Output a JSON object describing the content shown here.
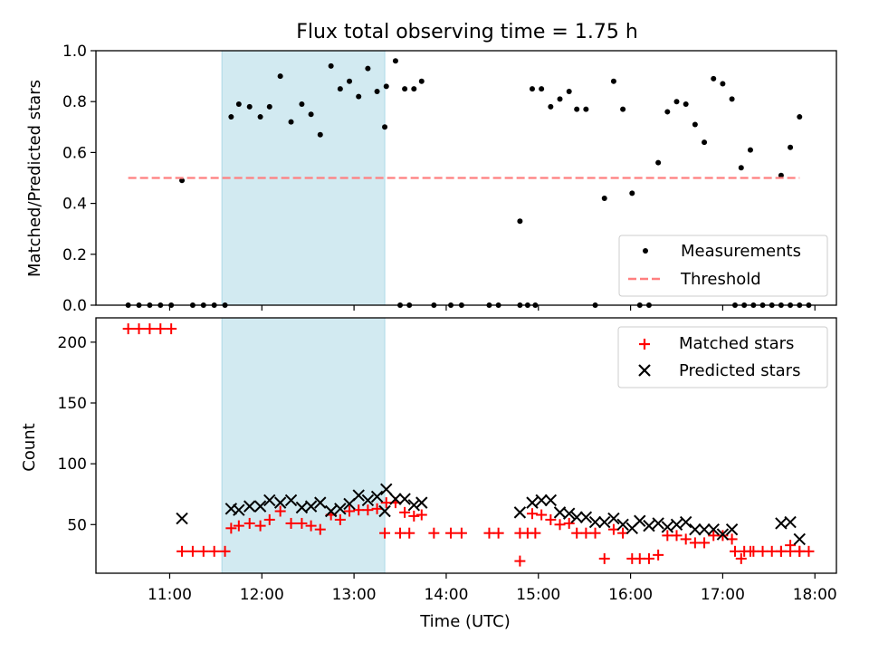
{
  "chart_data": [
    {
      "type": "scatter",
      "title": "Flux total observing time = 1.75 h",
      "xlabel": "",
      "ylabel": "Matched/Predicted stars",
      "xlim": [
        "10:12",
        "18:14"
      ],
      "ylim": [
        0,
        1.0
      ],
      "yticks": [
        "0.0",
        "0.2",
        "0.4",
        "0.6",
        "0.8",
        "1.0"
      ],
      "shaded_interval": [
        "11:34",
        "13:20"
      ],
      "shaded_color": "#add8e6",
      "legend_position": "lower-right",
      "series": [
        {
          "name": "Measurements",
          "marker": "dot",
          "color": "#000000",
          "points": [
            [
              "10:33",
              0
            ],
            [
              "10:40",
              0
            ],
            [
              "10:47",
              0
            ],
            [
              "10:54",
              0
            ],
            [
              "11:01",
              0
            ],
            [
              "11:08",
              0.49
            ],
            [
              "11:15",
              0
            ],
            [
              "11:22",
              0
            ],
            [
              "11:29",
              0
            ],
            [
              "11:36",
              0
            ],
            [
              "11:40",
              0.74
            ],
            [
              "11:45",
              0.79
            ],
            [
              "11:52",
              0.78
            ],
            [
              "11:59",
              0.74
            ],
            [
              "12:05",
              0.78
            ],
            [
              "12:12",
              0.9
            ],
            [
              "12:19",
              0.72
            ],
            [
              "12:26",
              0.79
            ],
            [
              "12:32",
              0.75
            ],
            [
              "12:38",
              0.67
            ],
            [
              "12:45",
              0.94
            ],
            [
              "12:51",
              0.85
            ],
            [
              "12:57",
              0.88
            ],
            [
              "13:03",
              0.82
            ],
            [
              "13:09",
              0.93
            ],
            [
              "13:15",
              0.84
            ],
            [
              "13:21",
              0.86
            ],
            [
              "13:27",
              0.96
            ],
            [
              "13:33",
              0.85
            ],
            [
              "13:39",
              0.85
            ],
            [
              "13:44",
              0.88
            ],
            [
              "13:20",
              0.7
            ],
            [
              "13:30",
              0
            ],
            [
              "13:36",
              0
            ],
            [
              "13:52",
              0
            ],
            [
              "14:03",
              0
            ],
            [
              "14:10",
              0
            ],
            [
              "14:28",
              0
            ],
            [
              "14:34",
              0
            ],
            [
              "14:48",
              0
            ],
            [
              "14:53",
              0
            ],
            [
              "14:58",
              0
            ],
            [
              "14:48",
              0.33
            ],
            [
              "14:56",
              0.85
            ],
            [
              "15:02",
              0.85
            ],
            [
              "15:08",
              0.78
            ],
            [
              "15:14",
              0.81
            ],
            [
              "15:20",
              0.84
            ],
            [
              "15:25",
              0.77
            ],
            [
              "15:31",
              0.77
            ],
            [
              "15:37",
              0
            ],
            [
              "15:43",
              0.42
            ],
            [
              "15:49",
              0.88
            ],
            [
              "15:55",
              0.77
            ],
            [
              "16:01",
              0.44
            ],
            [
              "16:06",
              0
            ],
            [
              "16:12",
              0
            ],
            [
              "16:18",
              0.56
            ],
            [
              "16:24",
              0.76
            ],
            [
              "16:30",
              0.8
            ],
            [
              "16:36",
              0.79
            ],
            [
              "16:42",
              0.71
            ],
            [
              "16:48",
              0.64
            ],
            [
              "16:54",
              0.89
            ],
            [
              "17:00",
              0.87
            ],
            [
              "17:06",
              0.81
            ],
            [
              "17:12",
              0.54
            ],
            [
              "17:18",
              0.61
            ],
            [
              "17:08",
              0
            ],
            [
              "17:14",
              0
            ],
            [
              "17:20",
              0
            ],
            [
              "17:26",
              0
            ],
            [
              "17:32",
              0
            ],
            [
              "17:38",
              0
            ],
            [
              "17:44",
              0
            ],
            [
              "17:50",
              0
            ],
            [
              "17:56",
              0
            ],
            [
              "17:38",
              0.51
            ],
            [
              "17:44",
              0.62
            ],
            [
              "17:50",
              0.74
            ]
          ]
        },
        {
          "name": "Threshold",
          "marker": "dashed-line",
          "color": "#ff7f7f",
          "points": [
            [
              "10:33",
              0.5
            ],
            [
              "17:50",
              0.5
            ]
          ]
        }
      ]
    },
    {
      "type": "scatter",
      "title": "",
      "xlabel": "Time (UTC)",
      "ylabel": "Count",
      "xlim": [
        "10:12",
        "18:14"
      ],
      "ylim": [
        10,
        220
      ],
      "yticks": [
        "50",
        "100",
        "150",
        "200"
      ],
      "xticks": [
        "11:00",
        "12:00",
        "13:00",
        "14:00",
        "15:00",
        "16:00",
        "17:00",
        "18:00"
      ],
      "shaded_interval": [
        "11:34",
        "13:20"
      ],
      "shaded_color": "#add8e6",
      "legend_position": "upper-right",
      "series": [
        {
          "name": "Matched stars",
          "marker": "plus",
          "color": "#ff0000",
          "points": [
            [
              "10:33",
              211
            ],
            [
              "10:40",
              211
            ],
            [
              "10:47",
              211
            ],
            [
              "10:54",
              211
            ],
            [
              "11:01",
              211
            ],
            [
              "11:08",
              28
            ],
            [
              "11:15",
              28
            ],
            [
              "11:22",
              28
            ],
            [
              "11:29",
              28
            ],
            [
              "11:36",
              28
            ],
            [
              "11:40",
              47
            ],
            [
              "11:45",
              49
            ],
            [
              "11:52",
              51
            ],
            [
              "11:59",
              49
            ],
            [
              "12:05",
              54
            ],
            [
              "12:12",
              61
            ],
            [
              "12:19",
              51
            ],
            [
              "12:26",
              51
            ],
            [
              "12:32",
              49
            ],
            [
              "12:38",
              46
            ],
            [
              "12:45",
              58
            ],
            [
              "12:51",
              54
            ],
            [
              "12:57",
              61
            ],
            [
              "13:03",
              62
            ],
            [
              "13:09",
              62
            ],
            [
              "13:15",
              63
            ],
            [
              "13:21",
              68
            ],
            [
              "13:27",
              68
            ],
            [
              "13:33",
              60
            ],
            [
              "13:39",
              57
            ],
            [
              "13:44",
              58
            ],
            [
              "13:20",
              43
            ],
            [
              "13:30",
              43
            ],
            [
              "13:36",
              43
            ],
            [
              "13:52",
              43
            ],
            [
              "14:03",
              43
            ],
            [
              "14:10",
              43
            ],
            [
              "14:28",
              43
            ],
            [
              "14:34",
              43
            ],
            [
              "14:48",
              43
            ],
            [
              "14:53",
              43
            ],
            [
              "14:58",
              43
            ],
            [
              "14:48",
              20
            ],
            [
              "14:56",
              59
            ],
            [
              "15:02",
              58
            ],
            [
              "15:08",
              54
            ],
            [
              "15:14",
              50
            ],
            [
              "15:20",
              51
            ],
            [
              "15:25",
              43
            ],
            [
              "15:31",
              43
            ],
            [
              "15:37",
              43
            ],
            [
              "15:43",
              22
            ],
            [
              "15:49",
              46
            ],
            [
              "15:55",
              43
            ],
            [
              "16:01",
              22
            ],
            [
              "16:06",
              22
            ],
            [
              "16:12",
              22
            ],
            [
              "16:18",
              25
            ],
            [
              "16:24",
              41
            ],
            [
              "16:30",
              41
            ],
            [
              "16:36",
              38
            ],
            [
              "16:42",
              35
            ],
            [
              "16:48",
              35
            ],
            [
              "16:54",
              41
            ],
            [
              "17:00",
              41
            ],
            [
              "17:06",
              38
            ],
            [
              "17:12",
              22
            ],
            [
              "17:18",
              28
            ],
            [
              "17:08",
              28
            ],
            [
              "17:14",
              28
            ],
            [
              "17:20",
              28
            ],
            [
              "17:26",
              28
            ],
            [
              "17:32",
              28
            ],
            [
              "17:38",
              28
            ],
            [
              "17:44",
              28
            ],
            [
              "17:50",
              28
            ],
            [
              "17:56",
              28
            ],
            [
              "17:38",
              28
            ],
            [
              "17:44",
              33
            ],
            [
              "17:50",
              28
            ]
          ]
        },
        {
          "name": "Predicted stars",
          "marker": "x",
          "color": "#000000",
          "points": [
            [
              "11:08",
              55
            ],
            [
              "11:40",
              63
            ],
            [
              "11:45",
              62
            ],
            [
              "11:52",
              65
            ],
            [
              "11:59",
              65
            ],
            [
              "12:05",
              70
            ],
            [
              "12:12",
              68
            ],
            [
              "12:19",
              70
            ],
            [
              "12:26",
              64
            ],
            [
              "12:32",
              65
            ],
            [
              "12:38",
              68
            ],
            [
              "12:45",
              61
            ],
            [
              "12:51",
              63
            ],
            [
              "12:57",
              67
            ],
            [
              "13:03",
              74
            ],
            [
              "13:09",
              70
            ],
            [
              "13:15",
              73
            ],
            [
              "13:21",
              79
            ],
            [
              "13:27",
              71
            ],
            [
              "13:33",
              71
            ],
            [
              "13:39",
              66
            ],
            [
              "13:44",
              68
            ],
            [
              "13:20",
              61
            ],
            [
              "14:48",
              60
            ],
            [
              "14:56",
              68
            ],
            [
              "15:02",
              70
            ],
            [
              "15:08",
              70
            ],
            [
              "15:14",
              60
            ],
            [
              "15:20",
              59
            ],
            [
              "15:25",
              56
            ],
            [
              "15:31",
              56
            ],
            [
              "15:37",
              52
            ],
            [
              "15:43",
              52
            ],
            [
              "15:49",
              55
            ],
            [
              "15:55",
              50
            ],
            [
              "16:01",
              47
            ],
            [
              "16:06",
              53
            ],
            [
              "16:12",
              49
            ],
            [
              "16:18",
              51
            ],
            [
              "16:24",
              48
            ],
            [
              "16:30",
              50
            ],
            [
              "16:36",
              52
            ],
            [
              "16:42",
              46
            ],
            [
              "16:48",
              46
            ],
            [
              "16:54",
              46
            ],
            [
              "17:00",
              42
            ],
            [
              "17:06",
              46
            ],
            [
              "17:38",
              51
            ],
            [
              "17:44",
              52
            ],
            [
              "17:50",
              38
            ]
          ]
        }
      ]
    }
  ]
}
